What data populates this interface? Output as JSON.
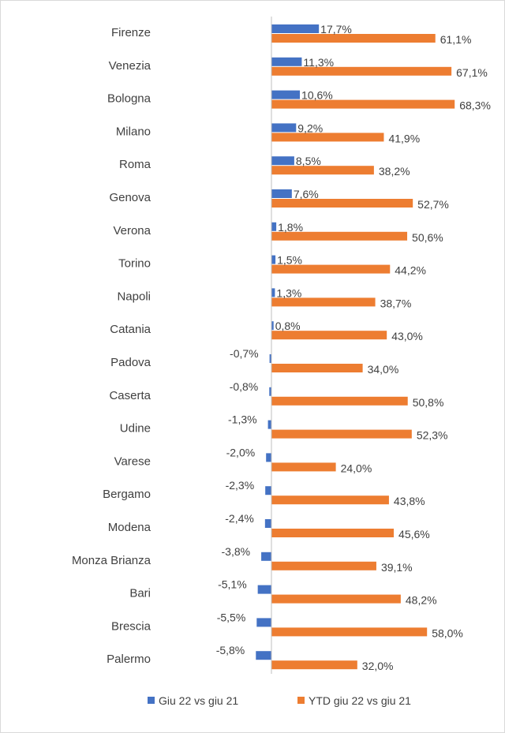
{
  "chart_data": {
    "type": "bar",
    "orientation": "horizontal",
    "categories": [
      "Firenze",
      "Venezia",
      "Bologna",
      "Milano",
      "Roma",
      "Genova",
      "Verona",
      "Torino",
      "Napoli",
      "Catania",
      "Padova",
      "Caserta",
      "Udine",
      "Varese",
      "Bergamo",
      "Modena",
      "Monza Brianza",
      "Bari",
      "Brescia",
      "Palermo"
    ],
    "series": [
      {
        "name": "Giu 22 vs giu 21",
        "color": "#4472C4",
        "values": [
          17.7,
          11.3,
          10.6,
          9.2,
          8.5,
          7.6,
          1.8,
          1.5,
          1.3,
          0.8,
          -0.7,
          -0.8,
          -1.3,
          -2.0,
          -2.3,
          -2.4,
          -3.8,
          -5.1,
          -5.5,
          -5.8
        ],
        "labels": [
          "17,7%",
          "11,3%",
          "10,6%",
          "9,2%",
          "8,5%",
          "7,6%",
          "1,8%",
          "1,5%",
          "1,3%",
          "0,8%",
          "-0,7%",
          "-0,8%",
          "-1,3%",
          "-2,0%",
          "-2,3%",
          "-2,4%",
          "-3,8%",
          "-5,1%",
          "-5,5%",
          "-5,8%"
        ]
      },
      {
        "name": "YTD giu 22 vs giu 21",
        "color": "#ED7D31",
        "values": [
          61.1,
          67.1,
          68.3,
          41.9,
          38.2,
          52.7,
          50.6,
          44.2,
          38.7,
          43.0,
          34.0,
          50.8,
          52.3,
          24.0,
          43.8,
          45.6,
          39.1,
          48.2,
          58.0,
          32.0
        ],
        "labels": [
          "61,1%",
          "67,1%",
          "68,3%",
          "41,9%",
          "38,2%",
          "52,7%",
          "50,6%",
          "44,2%",
          "38,7%",
          "43,0%",
          "34,0%",
          "50,8%",
          "52,3%",
          "24,0%",
          "43,8%",
          "45,6%",
          "39,1%",
          "48,2%",
          "58,0%",
          "32,0%"
        ]
      }
    ],
    "unit": "%",
    "legend_position": "bottom",
    "grid": false
  }
}
